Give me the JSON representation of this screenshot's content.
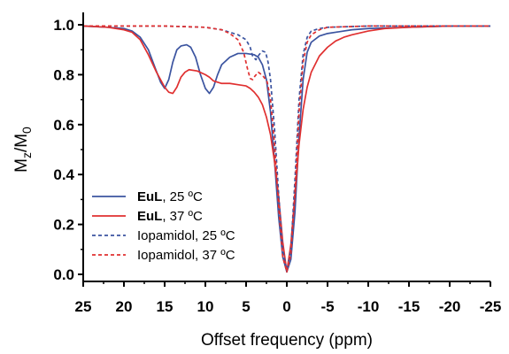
{
  "chart_data": {
    "type": "line",
    "xlabel": "Offset frequency (ppm)",
    "ylabel": {
      "main": "M",
      "sub1": "z",
      "slash": "/M",
      "sub2": "0"
    },
    "xlim": [
      25,
      -25
    ],
    "ylim": [
      0,
      1.0
    ],
    "x_reversed": true,
    "xticks": [
      "25",
      "20",
      "15",
      "10",
      "5",
      "0",
      "-5",
      "-10",
      "-15",
      "-20",
      "-25"
    ],
    "xtick_values": [
      25,
      20,
      15,
      10,
      5,
      0,
      -5,
      -10,
      -15,
      -20,
      -25
    ],
    "yticks": [
      "0.0",
      "0.2",
      "0.4",
      "0.6",
      "0.8",
      "1.0"
    ],
    "ytick_values": [
      0,
      0.2,
      0.4,
      0.6,
      0.8,
      1.0
    ],
    "grid": false,
    "legend_position": "bottom-left",
    "series": [
      {
        "name_bold": "EuL",
        "name_rest": ", 25 ºC",
        "color": "#3b54a0",
        "dash": "solid",
        "points": [
          [
            25,
            0.995
          ],
          [
            22,
            0.99
          ],
          [
            20,
            0.985
          ],
          [
            19,
            0.975
          ],
          [
            18,
            0.95
          ],
          [
            17,
            0.9
          ],
          [
            16.2,
            0.83
          ],
          [
            15.5,
            0.77
          ],
          [
            15,
            0.745
          ],
          [
            14.5,
            0.78
          ],
          [
            14,
            0.85
          ],
          [
            13.5,
            0.9
          ],
          [
            13,
            0.915
          ],
          [
            12.3,
            0.92
          ],
          [
            11.8,
            0.91
          ],
          [
            11.2,
            0.87
          ],
          [
            10.6,
            0.8
          ],
          [
            10,
            0.745
          ],
          [
            9.5,
            0.725
          ],
          [
            9,
            0.75
          ],
          [
            8.5,
            0.8
          ],
          [
            8,
            0.84
          ],
          [
            7,
            0.87
          ],
          [
            6,
            0.885
          ],
          [
            5,
            0.885
          ],
          [
            4,
            0.88
          ],
          [
            3.5,
            0.87
          ],
          [
            3,
            0.84
          ],
          [
            2.5,
            0.78
          ],
          [
            2,
            0.65
          ],
          [
            1.5,
            0.45
          ],
          [
            1,
            0.23
          ],
          [
            0.5,
            0.07
          ],
          [
            0,
            0.01
          ],
          [
            -0.5,
            0.06
          ],
          [
            -1,
            0.25
          ],
          [
            -1.5,
            0.55
          ],
          [
            -2,
            0.78
          ],
          [
            -2.5,
            0.89
          ],
          [
            -3,
            0.93
          ],
          [
            -4,
            0.955
          ],
          [
            -5,
            0.965
          ],
          [
            -6,
            0.97
          ],
          [
            -8,
            0.98
          ],
          [
            -10,
            0.985
          ],
          [
            -15,
            0.99
          ],
          [
            -20,
            0.995
          ],
          [
            -25,
            0.995
          ]
        ]
      },
      {
        "name_bold": "EuL",
        "name_rest": ", 37 ºC",
        "color": "#e03030",
        "dash": "solid",
        "points": [
          [
            25,
            0.995
          ],
          [
            22,
            0.99
          ],
          [
            20,
            0.98
          ],
          [
            19,
            0.97
          ],
          [
            18,
            0.94
          ],
          [
            17,
            0.88
          ],
          [
            16,
            0.81
          ],
          [
            15,
            0.75
          ],
          [
            14.5,
            0.73
          ],
          [
            14,
            0.725
          ],
          [
            13.5,
            0.75
          ],
          [
            13,
            0.79
          ],
          [
            12.5,
            0.81
          ],
          [
            12,
            0.82
          ],
          [
            11,
            0.815
          ],
          [
            10,
            0.8
          ],
          [
            9.5,
            0.79
          ],
          [
            9,
            0.775
          ],
          [
            8,
            0.765
          ],
          [
            7,
            0.765
          ],
          [
            6,
            0.76
          ],
          [
            5,
            0.755
          ],
          [
            4.5,
            0.745
          ],
          [
            4,
            0.73
          ],
          [
            3.5,
            0.71
          ],
          [
            3,
            0.68
          ],
          [
            2.5,
            0.63
          ],
          [
            2,
            0.56
          ],
          [
            1.5,
            0.45
          ],
          [
            1,
            0.31
          ],
          [
            0.5,
            0.13
          ],
          [
            0,
            0.01
          ],
          [
            -0.5,
            0.12
          ],
          [
            -1,
            0.32
          ],
          [
            -1.5,
            0.52
          ],
          [
            -2,
            0.66
          ],
          [
            -2.5,
            0.75
          ],
          [
            -3,
            0.81
          ],
          [
            -4,
            0.875
          ],
          [
            -5,
            0.91
          ],
          [
            -6,
            0.935
          ],
          [
            -7,
            0.95
          ],
          [
            -8,
            0.96
          ],
          [
            -10,
            0.975
          ],
          [
            -12,
            0.985
          ],
          [
            -15,
            0.99
          ],
          [
            -20,
            0.995
          ],
          [
            -25,
            0.995
          ]
        ]
      },
      {
        "name_bold": "",
        "name_rest": "Iopamidol, 25 ºC",
        "color": "#3b54a0",
        "dash": "dashed",
        "points": [
          [
            25,
            0.995
          ],
          [
            15,
            0.995
          ],
          [
            10,
            0.99
          ],
          [
            8,
            0.98
          ],
          [
            7,
            0.97
          ],
          [
            6,
            0.96
          ],
          [
            5,
            0.94
          ],
          [
            4.5,
            0.91
          ],
          [
            4.2,
            0.875
          ],
          [
            3.8,
            0.86
          ],
          [
            3.4,
            0.88
          ],
          [
            3,
            0.895
          ],
          [
            2.6,
            0.89
          ],
          [
            2.3,
            0.85
          ],
          [
            2,
            0.78
          ],
          [
            1.5,
            0.58
          ],
          [
            1,
            0.32
          ],
          [
            0.5,
            0.1
          ],
          [
            0,
            0.01
          ],
          [
            -0.5,
            0.1
          ],
          [
            -1,
            0.38
          ],
          [
            -1.5,
            0.7
          ],
          [
            -2,
            0.88
          ],
          [
            -2.5,
            0.95
          ],
          [
            -3,
            0.975
          ],
          [
            -4,
            0.985
          ],
          [
            -5,
            0.99
          ],
          [
            -10,
            0.995
          ],
          [
            -25,
            0.995
          ]
        ]
      },
      {
        "name_bold": "",
        "name_rest": "Iopamidol, 37 ºC",
        "color": "#e03030",
        "dash": "dashed",
        "points": [
          [
            25,
            0.995
          ],
          [
            15,
            0.995
          ],
          [
            10,
            0.99
          ],
          [
            8,
            0.98
          ],
          [
            7,
            0.965
          ],
          [
            6,
            0.94
          ],
          [
            5.3,
            0.89
          ],
          [
            4.8,
            0.82
          ],
          [
            4.5,
            0.785
          ],
          [
            4.2,
            0.78
          ],
          [
            3.9,
            0.795
          ],
          [
            3.5,
            0.81
          ],
          [
            3.1,
            0.8
          ],
          [
            2.8,
            0.79
          ],
          [
            2.4,
            0.77
          ],
          [
            2,
            0.7
          ],
          [
            1.5,
            0.52
          ],
          [
            1,
            0.27
          ],
          [
            0.5,
            0.07
          ],
          [
            0,
            0.01
          ],
          [
            -0.5,
            0.08
          ],
          [
            -1,
            0.33
          ],
          [
            -1.5,
            0.65
          ],
          [
            -2,
            0.85
          ],
          [
            -2.5,
            0.93
          ],
          [
            -3,
            0.96
          ],
          [
            -4,
            0.98
          ],
          [
            -5,
            0.99
          ],
          [
            -10,
            0.995
          ],
          [
            -25,
            0.995
          ]
        ]
      }
    ]
  }
}
